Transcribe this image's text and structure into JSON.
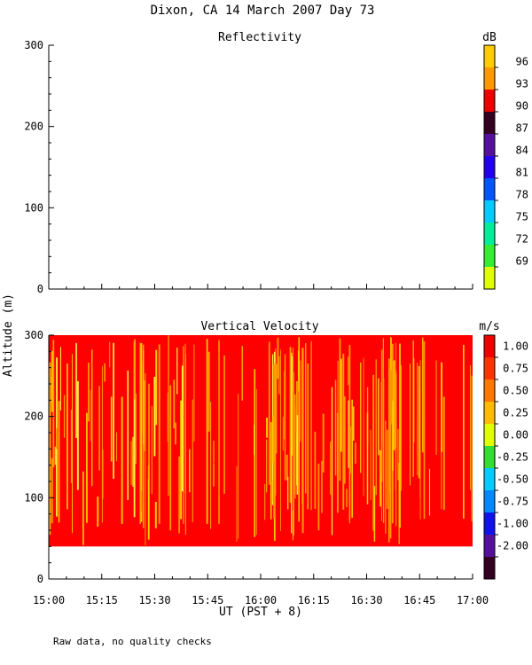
{
  "title": "Dixon, CA 14 March 2007  Day  73",
  "footnote": "Raw data, no quality checks",
  "ylabel": "Altitude (m)",
  "xlabel": "UT  (PST + 8)",
  "chart_data": [
    {
      "type": "heatmap",
      "title": "Reflectivity",
      "colorbar_unit": "dB",
      "ylim": [
        0,
        300
      ],
      "yticks": [
        "0",
        "100",
        "200",
        "300"
      ],
      "xticks": [
        "15:00",
        "15:15",
        "15:30",
        "15:45",
        "16:00",
        "16:15",
        "16:30",
        "16:45",
        "17:00"
      ],
      "colorbar_labels": [
        "69",
        "72",
        "75",
        "78",
        "81",
        "84",
        "87",
        "90",
        "93",
        "96"
      ],
      "colorbar_colors": [
        "#e0ff00",
        "#33ee33",
        "#00ee99",
        "#00ccff",
        "#0055ff",
        "#2200ee",
        "#551199",
        "#330022",
        "#ee0000",
        "#ff9900",
        "#ffcc00"
      ],
      "data_present": false
    },
    {
      "type": "heatmap",
      "title": "Vertical Velocity",
      "colorbar_unit": "m/s",
      "ylim": [
        0,
        300
      ],
      "data_altitude_range": [
        40,
        300
      ],
      "time_range": [
        "15:00",
        "17:00"
      ],
      "yticks": [
        "0",
        "100",
        "200",
        "300"
      ],
      "xticks": [
        "15:00",
        "15:15",
        "15:30",
        "15:45",
        "16:00",
        "16:15",
        "16:30",
        "16:45",
        "17:00"
      ],
      "colorbar_labels": [
        "1.00",
        "0.75",
        "0.50",
        "0.25",
        "0.00",
        "-0.25",
        "-0.50",
        "-0.75",
        "-1.00",
        "-2.00"
      ],
      "colorbar_colors": [
        "#ee0000",
        "#ff3300",
        "#ff7700",
        "#ffbb00",
        "#e0ff00",
        "#33dd33",
        "#00ccff",
        "#0088ff",
        "#1111ee",
        "#551199",
        "#330022"
      ],
      "dominant_colors": [
        "#ff0000",
        "#ff9900",
        "#ffcc00",
        "#ffee44"
      ],
      "yellow_band_times": [
        "15:00",
        "15:27",
        "15:37",
        "16:05",
        "16:10",
        "16:25",
        "16:35",
        "16:45"
      ]
    }
  ]
}
